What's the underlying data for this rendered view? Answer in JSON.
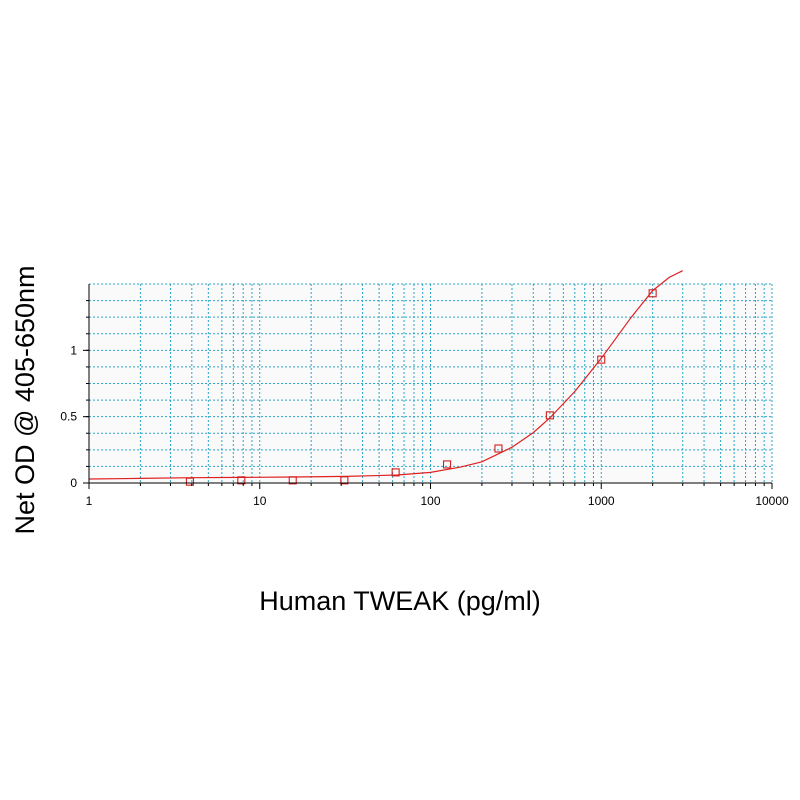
{
  "chart_data": {
    "type": "scatter",
    "title": "",
    "xlabel": "Human TWEAK (pg/ml)",
    "ylabel": "Net OD @ 405-650nm",
    "x_scale": "log",
    "xlim": [
      1,
      10000
    ],
    "ylim": [
      0,
      1.5
    ],
    "x_ticks": [
      1,
      10,
      100,
      1000,
      10000
    ],
    "x_tick_labels": [
      "1",
      "10",
      "100",
      "1000",
      "10000"
    ],
    "y_ticks": [
      0,
      0.5,
      1
    ],
    "y_tick_labels": [
      "0",
      "0.5",
      "1"
    ],
    "grid": true,
    "legend": "none",
    "series": [
      {
        "kind": "points",
        "marker": "open-square",
        "x": [
          3.9,
          7.8,
          15.6,
          31.3,
          62.5,
          125,
          250,
          500,
          1000,
          2000
        ],
        "y": [
          0.01,
          0.02,
          0.02,
          0.02,
          0.08,
          0.14,
          0.26,
          0.51,
          0.93,
          1.43
        ]
      },
      {
        "kind": "fit-curve",
        "x": [
          1,
          2,
          4,
          8,
          16,
          32,
          64,
          100,
          150,
          200,
          300,
          400,
          500,
          700,
          1000,
          1500,
          2000,
          2500,
          3000
        ],
        "y": [
          0.03,
          0.035,
          0.04,
          0.042,
          0.045,
          0.05,
          0.06,
          0.08,
          0.12,
          0.16,
          0.27,
          0.38,
          0.49,
          0.69,
          0.94,
          1.25,
          1.45,
          1.55,
          1.6
        ]
      }
    ],
    "colors": {
      "curve": "#e02020",
      "markers": "#d02020",
      "grid": "#2aa6c8",
      "axis": "#000000",
      "plot_background": "#fafafa"
    }
  }
}
